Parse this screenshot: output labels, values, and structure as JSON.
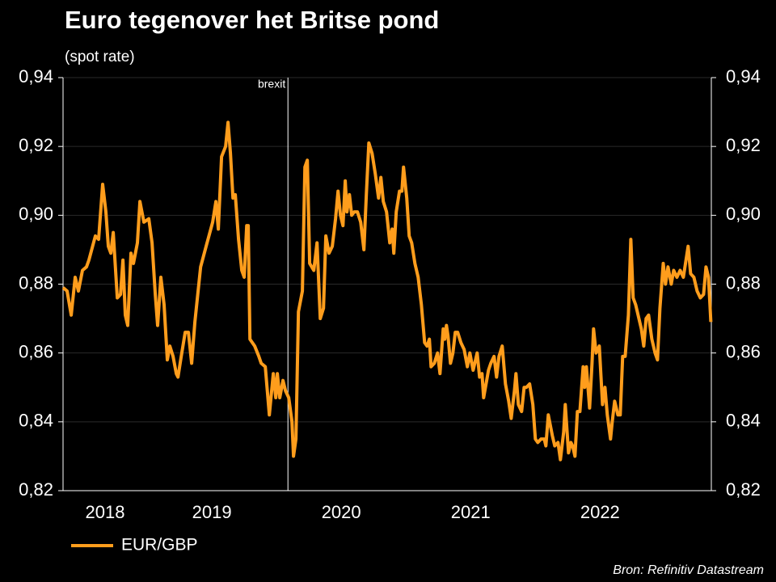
{
  "chart_data": {
    "type": "line",
    "title": "Euro tegenover het Britse pond",
    "subtitle": "(spot rate)",
    "source": "Bron: Refinitiv Datastream",
    "annotations": [
      {
        "text": "brexit",
        "x": 2020.088
      }
    ],
    "x": [
      2018.35,
      2018.381,
      2018.413,
      2018.444,
      2018.469,
      2018.5,
      2018.531,
      2018.55,
      2018.6,
      2018.625,
      2018.656,
      2018.681,
      2018.7,
      2018.719,
      2018.738,
      2018.769,
      2018.794,
      2018.813,
      2018.831,
      2018.85,
      2018.875,
      2018.894,
      2018.925,
      2018.944,
      2018.975,
      2019.013,
      2019.038,
      2019.063,
      2019.081,
      2019.106,
      2019.131,
      2019.156,
      2019.175,
      2019.2,
      2019.225,
      2019.238,
      2019.263,
      2019.294,
      2019.319,
      2019.344,
      2019.369,
      2019.413,
      2019.456,
      2019.506,
      2019.531,
      2019.55,
      2019.575,
      2019.606,
      2019.625,
      2019.644,
      2019.663,
      2019.681,
      2019.706,
      2019.731,
      2019.75,
      2019.769,
      2019.781,
      2019.794,
      2019.831,
      2019.863,
      2019.881,
      2019.913,
      2019.944,
      2019.975,
      2019.994,
      2020.006,
      2020.025,
      2020.05,
      2020.069,
      2020.094,
      2020.119,
      2020.131,
      2020.15,
      2020.169,
      2020.2,
      2020.219,
      2020.238,
      2020.256,
      2020.288,
      2020.313,
      2020.338,
      2020.363,
      2020.381,
      2020.406,
      2020.431,
      2020.456,
      2020.475,
      2020.494,
      2020.513,
      2020.531,
      2020.544,
      2020.563,
      2020.581,
      2020.6,
      2020.625,
      2020.65,
      2020.675,
      2020.694,
      2020.713,
      2020.738,
      2020.763,
      2020.788,
      2020.806,
      2020.825,
      2020.85,
      2020.875,
      2020.894,
      2020.906,
      2020.925,
      2020.95,
      2020.969,
      2020.981,
      2021.006,
      2021.025,
      2021.044,
      2021.069,
      2021.094,
      2021.119,
      2021.144,
      2021.163,
      2021.181,
      2021.194,
      2021.219,
      2021.244,
      2021.263,
      2021.288,
      2021.3,
      2021.313,
      2021.325,
      2021.344,
      2021.363,
      2021.381,
      2021.4,
      2021.425,
      2021.45,
      2021.475,
      2021.494,
      2021.519,
      2021.538,
      2021.55,
      2021.569,
      2021.588,
      2021.6,
      2021.619,
      2021.638,
      2021.656,
      2021.681,
      2021.7,
      2021.719,
      2021.744,
      2021.769,
      2021.794,
      2021.813,
      2021.838,
      2021.85,
      2021.869,
      2021.894,
      2021.913,
      2021.931,
      2021.956,
      2021.981,
      2022.0,
      2022.019,
      2022.044,
      2022.069,
      2022.081,
      2022.1,
      2022.131,
      2022.15,
      2022.175,
      2022.194,
      2022.219,
      2022.231,
      2022.256,
      2022.275,
      2022.288,
      2022.306,
      2022.325,
      2022.344,
      2022.369,
      2022.381,
      2022.394,
      2022.419,
      2022.438,
      2022.45,
      2022.469,
      2022.494,
      2022.519,
      2022.538,
      2022.556,
      2022.581,
      2022.594,
      2022.613,
      2022.638,
      2022.656,
      2022.675,
      2022.694,
      2022.719,
      2022.738,
      2022.756,
      2022.775,
      2022.794,
      2022.819,
      2022.838,
      2022.856,
      2022.875,
      2022.9,
      2022.925,
      2022.944,
      2022.963,
      2022.988,
      2023.006,
      2023.025,
      2023.05,
      2023.069,
      2023.094,
      2023.119,
      2023.144,
      2023.181,
      2023.2,
      2023.225,
      2023.25,
      2023.275,
      2023.3,
      2023.319,
      2023.338,
      2023.356
    ],
    "series": [
      {
        "name": "EUR/GBP",
        "color": "#ff9d1c",
        "values": [
          0.879,
          0.878,
          0.871,
          0.882,
          0.878,
          0.884,
          0.885,
          0.887,
          0.894,
          0.893,
          0.909,
          0.901,
          0.891,
          0.889,
          0.895,
          0.876,
          0.877,
          0.887,
          0.871,
          0.868,
          0.889,
          0.886,
          0.892,
          0.904,
          0.898,
          0.899,
          0.892,
          0.877,
          0.868,
          0.882,
          0.874,
          0.858,
          0.862,
          0.859,
          0.854,
          0.853,
          0.859,
          0.866,
          0.866,
          0.857,
          0.869,
          0.885,
          0.891,
          0.898,
          0.904,
          0.896,
          0.917,
          0.92,
          0.927,
          0.918,
          0.905,
          0.906,
          0.893,
          0.884,
          0.882,
          0.897,
          0.897,
          0.864,
          0.862,
          0.859,
          0.857,
          0.856,
          0.842,
          0.854,
          0.847,
          0.854,
          0.847,
          0.852,
          0.849,
          0.847,
          0.84,
          0.83,
          0.835,
          0.872,
          0.878,
          0.914,
          0.916,
          0.886,
          0.884,
          0.892,
          0.87,
          0.873,
          0.894,
          0.889,
          0.891,
          0.899,
          0.907,
          0.9,
          0.897,
          0.91,
          0.901,
          0.906,
          0.9,
          0.901,
          0.901,
          0.898,
          0.89,
          0.906,
          0.921,
          0.918,
          0.912,
          0.905,
          0.911,
          0.904,
          0.901,
          0.892,
          0.896,
          0.889,
          0.901,
          0.907,
          0.907,
          0.914,
          0.905,
          0.894,
          0.892,
          0.886,
          0.882,
          0.874,
          0.863,
          0.862,
          0.864,
          0.856,
          0.857,
          0.86,
          0.854,
          0.867,
          0.864,
          0.868,
          0.865,
          0.857,
          0.86,
          0.866,
          0.866,
          0.863,
          0.861,
          0.856,
          0.86,
          0.855,
          0.858,
          0.86,
          0.853,
          0.854,
          0.847,
          0.851,
          0.855,
          0.857,
          0.859,
          0.853,
          0.859,
          0.862,
          0.851,
          0.846,
          0.841,
          0.849,
          0.854,
          0.845,
          0.843,
          0.85,
          0.85,
          0.851,
          0.845,
          0.835,
          0.834,
          0.835,
          0.835,
          0.833,
          0.842,
          0.836,
          0.833,
          0.834,
          0.829,
          0.837,
          0.845,
          0.831,
          0.834,
          0.833,
          0.83,
          0.843,
          0.843,
          0.856,
          0.85,
          0.856,
          0.844,
          0.857,
          0.867,
          0.86,
          0.862,
          0.845,
          0.85,
          0.842,
          0.835,
          0.84,
          0.846,
          0.842,
          0.842,
          0.859,
          0.859,
          0.871,
          0.893,
          0.876,
          0.874,
          0.871,
          0.867,
          0.862,
          0.87,
          0.871,
          0.864,
          0.86,
          0.858,
          0.873,
          0.886,
          0.88,
          0.885,
          0.88,
          0.884,
          0.882,
          0.884,
          0.882,
          0.891,
          0.883,
          0.882,
          0.878,
          0.876,
          0.877,
          0.885,
          0.882,
          0.869
        ]
      }
    ],
    "xlim": [
      2018.35,
      2023.36
    ],
    "xticks": [
      {
        "value": 2018.675,
        "label": "2018"
      },
      {
        "value": 2019.5,
        "label": "2019"
      },
      {
        "value": 2020.5,
        "label": "2020"
      },
      {
        "value": 2021.5,
        "label": "2021"
      },
      {
        "value": 2022.5,
        "label": "2022"
      }
    ],
    "ylim": [
      0.82,
      0.94
    ],
    "yticks": [
      {
        "value": 0.82,
        "label": "0,82"
      },
      {
        "value": 0.84,
        "label": "0,84"
      },
      {
        "value": 0.86,
        "label": "0,86"
      },
      {
        "value": 0.88,
        "label": "0,88"
      },
      {
        "value": 0.9,
        "label": "0,90"
      },
      {
        "value": 0.92,
        "label": "0,92"
      },
      {
        "value": 0.94,
        "label": "0,94"
      }
    ],
    "y2lim": [
      0.82,
      0.94
    ],
    "y2ticks": [
      {
        "value": 0.82,
        "label": "0,82"
      },
      {
        "value": 0.84,
        "label": "0,84"
      },
      {
        "value": 0.86,
        "label": "0,86"
      },
      {
        "value": 0.88,
        "label": "0,88"
      },
      {
        "value": 0.9,
        "label": "0,90"
      },
      {
        "value": 0.92,
        "label": "0,92"
      },
      {
        "value": 0.94,
        "label": "0,94"
      }
    ],
    "grid": true,
    "legend": "bottom-left"
  }
}
